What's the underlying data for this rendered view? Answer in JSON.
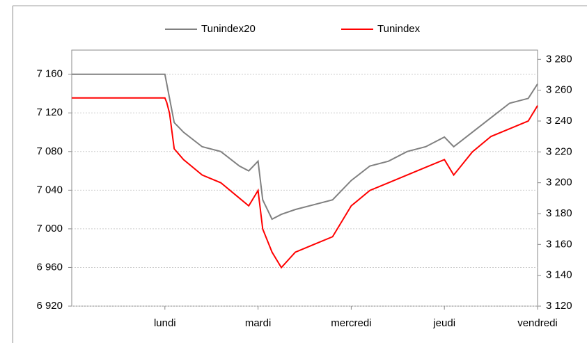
{
  "chart_data": {
    "type": "line",
    "x": [
      0,
      1.0,
      1.02,
      1.05,
      1.1,
      1.2,
      1.4,
      1.6,
      1.8,
      1.9,
      2.0,
      2.05,
      2.15,
      2.25,
      2.4,
      2.6,
      2.8,
      3.0,
      3.2,
      3.4,
      3.6,
      3.8,
      4.0,
      4.1,
      4.3,
      4.5,
      4.7,
      4.9,
      5.0
    ],
    "xlim": [
      0,
      5
    ],
    "xticks": [
      {
        "value": 1,
        "label": "lundi"
      },
      {
        "value": 2,
        "label": "mardi"
      },
      {
        "value": 3,
        "label": "mercredi"
      },
      {
        "value": 4,
        "label": "jeudi"
      },
      {
        "value": 5,
        "label": "vendredi"
      }
    ],
    "series": [
      {
        "name": "Tunindex20",
        "color": "#808080",
        "values": [
          7160,
          7160,
          7150,
          7135,
          7110,
          7100,
          7085,
          7080,
          7065,
          7060,
          7070,
          7030,
          7010,
          7015,
          7020,
          7025,
          7030,
          7050,
          7065,
          7070,
          7080,
          7085,
          7095,
          7085,
          7100,
          7115,
          7130,
          7135,
          7150
        ]
      },
      {
        "name": "Tunindex",
        "color": "#ff0000",
        "axis": "y2",
        "values": [
          3255,
          3255,
          3252,
          3245,
          3222,
          3215,
          3205,
          3200,
          3190,
          3185,
          3195,
          3170,
          3155,
          3145,
          3155,
          3160,
          3165,
          3185,
          3195,
          3200,
          3205,
          3210,
          3215,
          3205,
          3220,
          3230,
          3235,
          3240,
          3250
        ]
      }
    ],
    "ylim": [
      6920,
      7185
    ],
    "yticks": [
      {
        "value": 6920,
        "label": "6 920"
      },
      {
        "value": 6960,
        "label": "6 960"
      },
      {
        "value": 7000,
        "label": "7 000"
      },
      {
        "value": 7040,
        "label": "7 040"
      },
      {
        "value": 7080,
        "label": "7 080"
      },
      {
        "value": 7120,
        "label": "7 120"
      },
      {
        "value": 7160,
        "label": "7 160"
      }
    ],
    "y2lim": [
      3120,
      3286
    ],
    "y2ticks": [
      {
        "value": 3120,
        "label": "3 120"
      },
      {
        "value": 3140,
        "label": "3 140"
      },
      {
        "value": 3160,
        "label": "3 160"
      },
      {
        "value": 3180,
        "label": "3 180"
      },
      {
        "value": 3200,
        "label": "3 200"
      },
      {
        "value": 3220,
        "label": "3 220"
      },
      {
        "value": 3240,
        "label": "3 240"
      },
      {
        "value": 3260,
        "label": "3 260"
      },
      {
        "value": 3280,
        "label": "3 280"
      }
    ],
    "grid": true
  }
}
